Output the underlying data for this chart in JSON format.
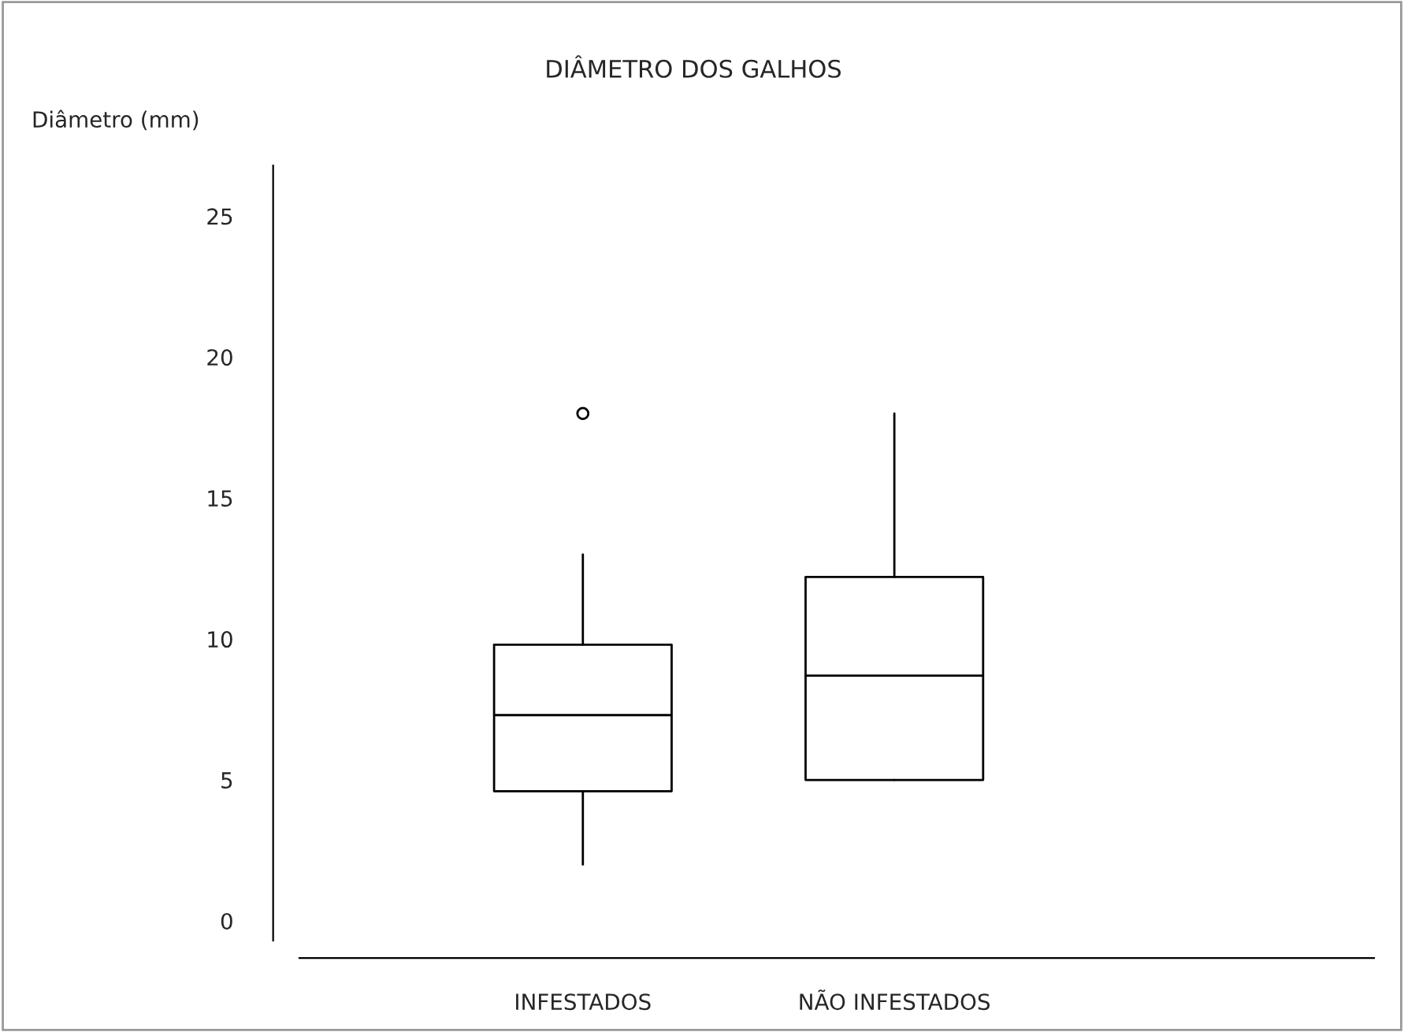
{
  "chart_data": {
    "type": "box",
    "title": "DIÂMETRO DOS GALHOS",
    "ylabel": "Diâmetro (mm)",
    "categories": [
      "INFESTADOS",
      "NÃO INFESTADOS"
    ],
    "boxes": [
      {
        "low": 2,
        "q1": 4.6,
        "median": 7.3,
        "q3": 9.8,
        "high": 13,
        "outliers": [
          18
        ]
      },
      {
        "low": 5,
        "q1": 5,
        "median": 8.7,
        "q3": 12.2,
        "high": 18
      }
    ],
    "ylim": [
      -0.7,
      26.8
    ],
    "yticks": [
      0,
      5,
      10,
      15,
      20,
      25
    ],
    "grid": false,
    "legend": false
  }
}
